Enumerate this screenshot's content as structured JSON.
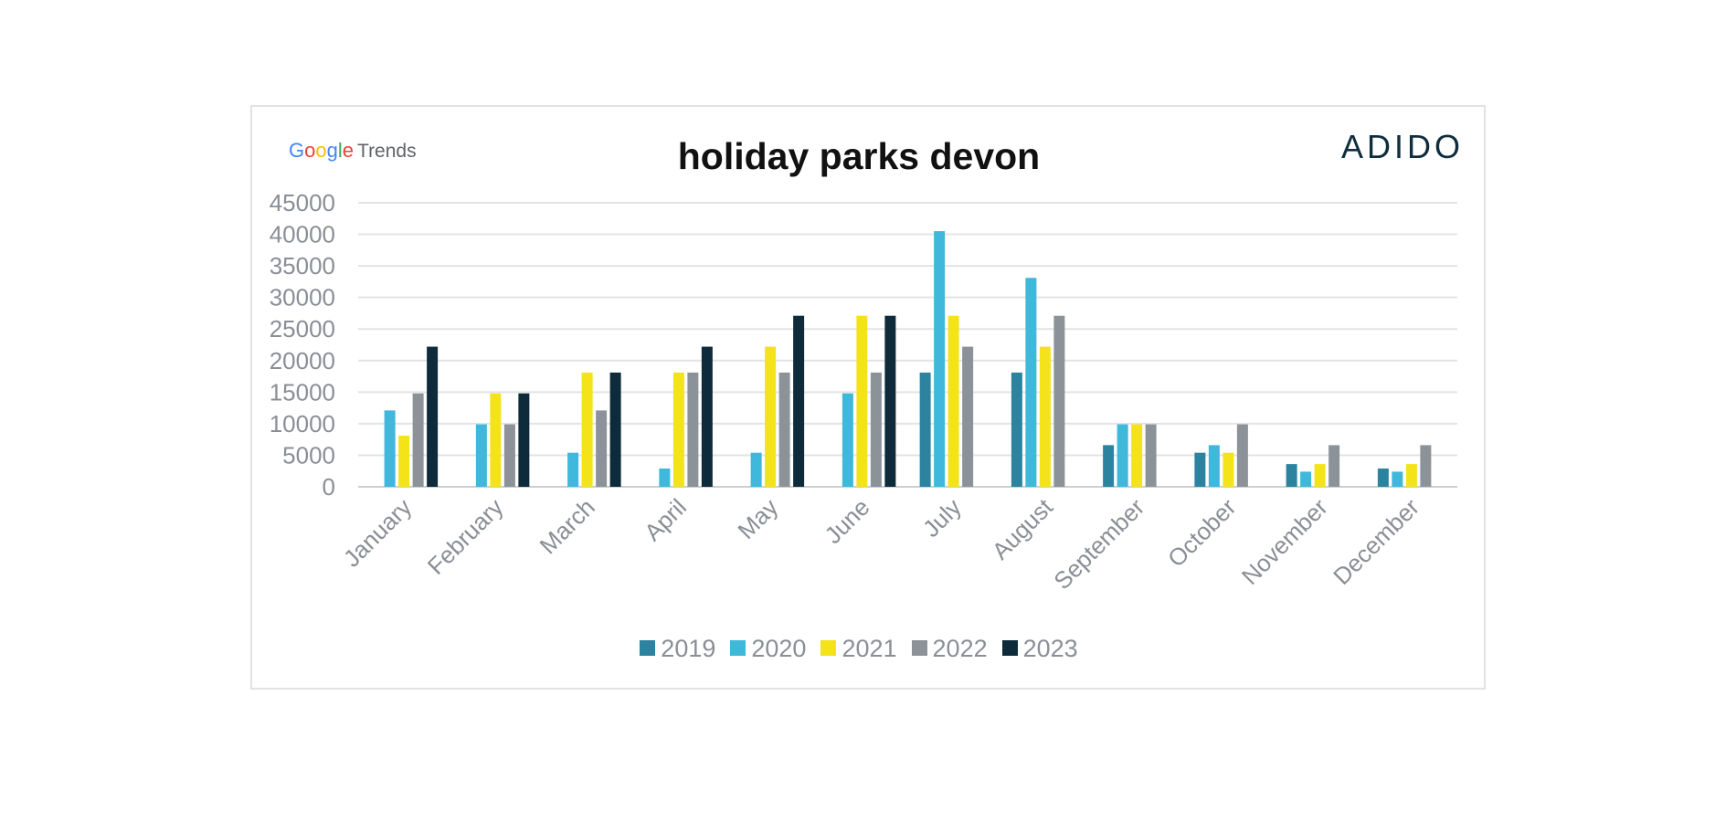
{
  "logo": {
    "google": "Google",
    "trends": "Trends"
  },
  "brand": "ADIDO",
  "chart_data": {
    "type": "bar",
    "title": "holiday parks devon",
    "categories": [
      "January",
      "February",
      "March",
      "April",
      "May",
      "June",
      "July",
      "August",
      "September",
      "October",
      "November",
      "December"
    ],
    "ylim": [
      0,
      45000
    ],
    "yticks": [
      0,
      5000,
      10000,
      15000,
      20000,
      25000,
      30000,
      35000,
      40000,
      45000
    ],
    "grid": true,
    "legend_position": "bottom",
    "series": [
      {
        "name": "2019",
        "color": "#2b83a0",
        "values": [
          0,
          0,
          0,
          0,
          0,
          0,
          18100,
          18100,
          6600,
          5400,
          3600,
          2900
        ]
      },
      {
        "name": "2020",
        "color": "#3fb8db",
        "values": [
          12100,
          9900,
          5400,
          2900,
          5400,
          14800,
          40500,
          33100,
          9900,
          6600,
          2400,
          2400
        ]
      },
      {
        "name": "2021",
        "color": "#f4e319",
        "values": [
          8100,
          14800,
          18100,
          18100,
          22200,
          27100,
          27100,
          22200,
          9900,
          5400,
          3600,
          3600
        ]
      },
      {
        "name": "2022",
        "color": "#8c9398",
        "values": [
          14800,
          9900,
          12100,
          18100,
          18100,
          18100,
          22200,
          27100,
          9900,
          9900,
          6600,
          6600
        ]
      },
      {
        "name": "2023",
        "color": "#0e2b3b",
        "values": [
          22200,
          14800,
          18100,
          22200,
          27100,
          27100,
          0,
          0,
          0,
          0,
          0,
          0
        ]
      }
    ]
  }
}
